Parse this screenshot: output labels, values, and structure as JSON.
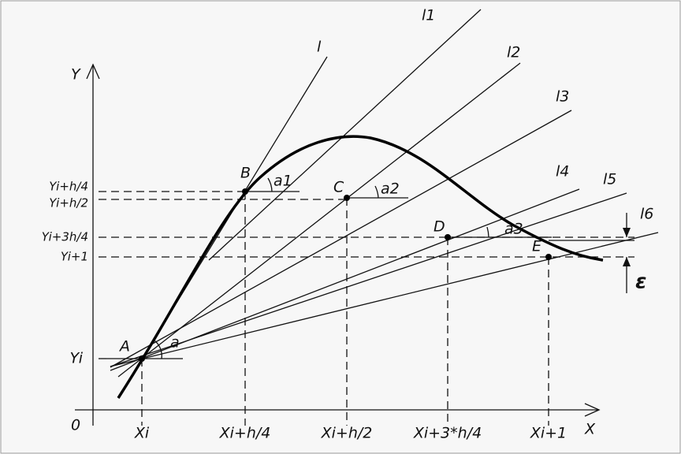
{
  "axes": {
    "y_label": "Y",
    "x_label": "X",
    "origin": "0"
  },
  "x_ticks": [
    "Xi",
    "Xi+h/4",
    "Xi+h/2",
    "Xi+3*h/4",
    "Xi+1"
  ],
  "y_ticks": [
    "Yi",
    "Yi+h/4",
    "Yi+h/2",
    "Yi+3h/4",
    "Yi+1"
  ],
  "points": [
    "A",
    "B",
    "C",
    "D",
    "E"
  ],
  "lines": [
    "l",
    "l1",
    "l2",
    "l3",
    "l4",
    "l5",
    "l6"
  ],
  "angles": [
    "a",
    "a1",
    "a2",
    "a3"
  ],
  "error": "ε"
}
